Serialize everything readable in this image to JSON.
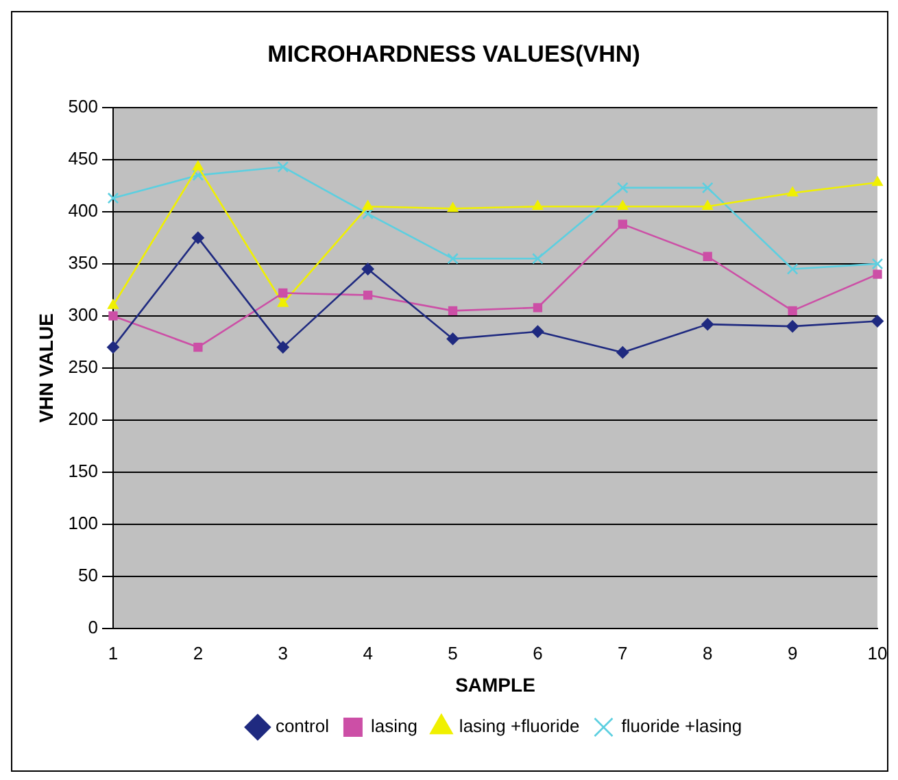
{
  "chart_data": {
    "type": "line",
    "title": "MICROHARDNESS VALUES(VHN)",
    "xlabel": "SAMPLE",
    "ylabel": "VHN VALUE",
    "categories": [
      "1",
      "2",
      "3",
      "4",
      "5",
      "6",
      "7",
      "8",
      "9",
      "10"
    ],
    "series": [
      {
        "name": "control",
        "color": "#1f2a80",
        "marker": "diamond",
        "values": [
          270,
          375,
          270,
          345,
          278,
          285,
          265,
          292,
          290,
          295
        ]
      },
      {
        "name": "lasing",
        "color": "#cc4fa6",
        "marker": "square",
        "values": [
          300,
          270,
          322,
          320,
          305,
          308,
          388,
          357,
          305,
          340
        ]
      },
      {
        "name": "lasing +fluoride",
        "color": "#f0f000",
        "marker": "triangle",
        "values": [
          310,
          443,
          312,
          405,
          403,
          405,
          405,
          405,
          418,
          428
        ]
      },
      {
        "name": "fluoride +lasing",
        "color": "#5ccfe0",
        "marker": "cross",
        "values": [
          413,
          435,
          443,
          398,
          355,
          355,
          423,
          423,
          345,
          350
        ]
      }
    ],
    "ylim": [
      0,
      500
    ],
    "yticks": [
      0,
      50,
      100,
      150,
      200,
      250,
      300,
      350,
      400,
      450,
      500
    ],
    "grid": "y",
    "legend": "bottom"
  }
}
